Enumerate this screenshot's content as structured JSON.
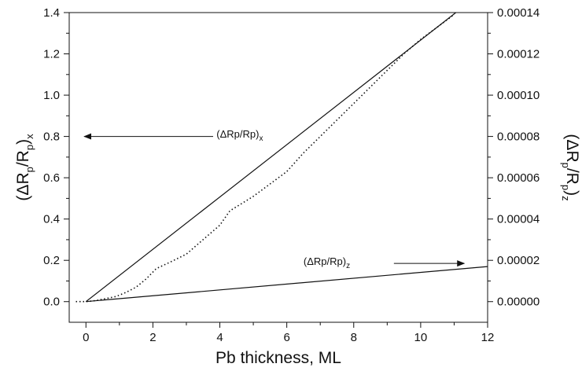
{
  "chart_data": {
    "type": "line",
    "xlabel": "Pb thickness, ML",
    "ylabel_left": {
      "base": "(ΔR",
      "sub1": "p",
      "mid": "/R",
      "sub2": "p",
      "close": ")",
      "sub3": "x"
    },
    "ylabel_right": {
      "base": "(ΔR",
      "sub1": "p",
      "mid": "/R",
      "sub2": "p",
      "close": ")",
      "sub3": "z"
    },
    "xlim": [
      -0.5,
      12
    ],
    "ylim_left": [
      -0.1,
      1.4
    ],
    "ylim_right": [
      -1e-05,
      0.00014
    ],
    "x_ticks": [
      0,
      2,
      4,
      6,
      8,
      10,
      12
    ],
    "x_tick_labels": [
      "0",
      "2",
      "4",
      "6",
      "8",
      "10",
      "12"
    ],
    "y_left_ticks": [
      0.0,
      0.2,
      0.4,
      0.6,
      0.8,
      1.0,
      1.2,
      1.4
    ],
    "y_left_tick_labels": [
      "0.0",
      "0.2",
      "0.4",
      "0.6",
      "0.8",
      "1.0",
      "1.2",
      "1.4"
    ],
    "y_right_ticks": [
      0.0,
      2e-05,
      4e-05,
      6e-05,
      8e-05,
      0.0001,
      0.00012,
      0.00014
    ],
    "y_right_tick_labels": [
      "0.00000",
      "0.00002",
      "0.00004",
      "0.00006",
      "0.00008",
      "0.00010",
      "0.00012",
      "0.00014"
    ],
    "series": [
      {
        "axis": "left",
        "style": "solid",
        "x": [
          0,
          11.05
        ],
        "y": [
          0,
          1.4
        ]
      },
      {
        "axis": "left",
        "style": "dotted",
        "x": [
          -0.3,
          0,
          0.3,
          0.6,
          0.9,
          1.2,
          1.5,
          1.8,
          2.1,
          2.5,
          3.0,
          3.5,
          4.0,
          4.3,
          4.6,
          5.0,
          5.5,
          6.0,
          6.5,
          7.0,
          7.5,
          8.0,
          8.5,
          9.0,
          9.5,
          10.0,
          10.5,
          11.0
        ],
        "y": [
          0.0,
          0.0,
          0.005,
          0.015,
          0.025,
          0.045,
          0.07,
          0.11,
          0.16,
          0.19,
          0.23,
          0.3,
          0.37,
          0.44,
          0.47,
          0.51,
          0.57,
          0.63,
          0.72,
          0.8,
          0.88,
          0.96,
          1.04,
          1.12,
          1.2,
          1.27,
          1.33,
          1.39
        ]
      },
      {
        "axis": "right",
        "style": "solid",
        "x": [
          0,
          12
        ],
        "y": [
          0.0,
          1.7e-05
        ]
      }
    ],
    "annotations": [
      {
        "base": "(ΔRp/Rp)",
        "sub": "x",
        "text_at": [
          3.9,
          0.795
        ],
        "arrow_from": [
          3.8,
          0.8
        ],
        "arrow_to": [
          -0.05,
          0.8
        ]
      },
      {
        "base": "(ΔRp/Rp)",
        "sub": "z",
        "text_at": [
          6.5,
          0.178
        ],
        "arrow_from": [
          9.2,
          0.185
        ],
        "arrow_to": [
          11.3,
          0.185
        ]
      }
    ]
  }
}
